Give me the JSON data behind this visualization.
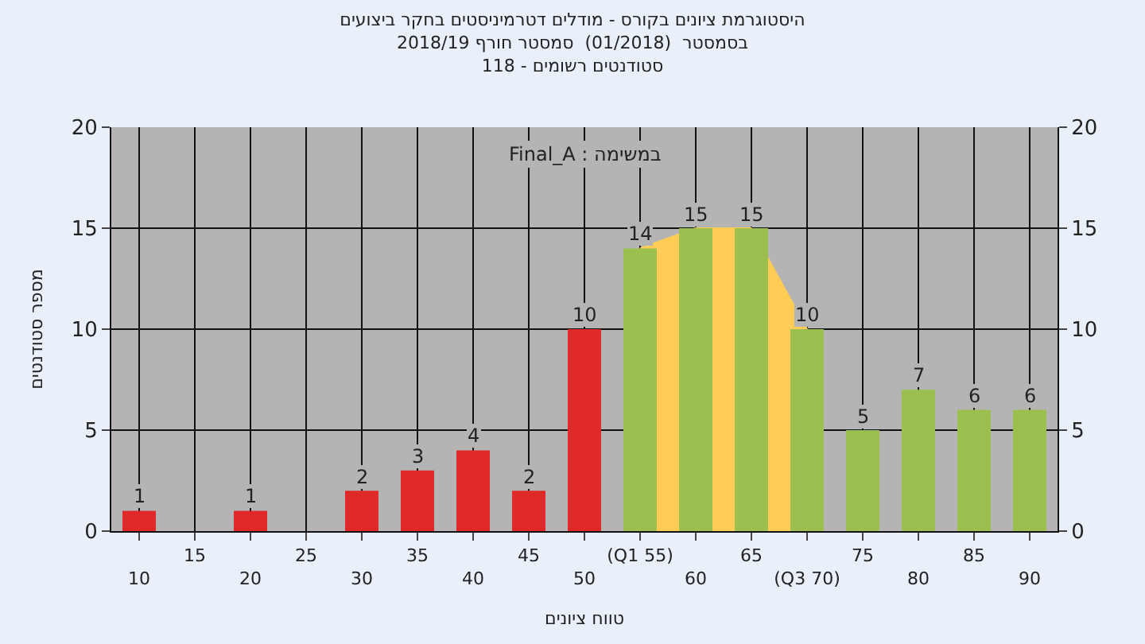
{
  "chart_data": {
    "type": "bar",
    "title": "היסטוגרמת ציונים בקורס - מודלים דטרמיניסטים בחקר ביצועים",
    "subtitle": "בסמסטר  (01/2018)  סמסטר חורף 2018/19\nסטודנטים רשומים - 118",
    "xlabel": "טווח ציונים",
    "ylabel": "מספר סטודנטים",
    "annotations": [
      "Final_A : במשימה"
    ],
    "categories": [
      "10",
      "15",
      "20",
      "25",
      "30",
      "35",
      "40",
      "45",
      "50",
      "(Q1 55)",
      "60",
      "65",
      "(Q3 70)",
      "75",
      "80",
      "85",
      "90"
    ],
    "series": [
      {
        "type": "area",
        "color": "#ffcc55",
        "values": [
          null,
          null,
          null,
          null,
          null,
          null,
          null,
          null,
          null,
          14,
          15,
          15,
          10,
          null,
          null,
          null,
          null
        ]
      },
      {
        "colors": [
          "#e02a2a",
          "#e02a2a",
          "#e02a2a",
          "#e02a2a",
          "#e02a2a",
          "#e02a2a",
          "#e02a2a",
          "#e02a2a",
          "#e02a2a",
          "#9bc050",
          "#9bc050",
          "#9bc050",
          "#9bc050",
          "#9bc050",
          "#9bc050",
          "#9bc050",
          "#9bc050"
        ],
        "values": [
          1,
          0,
          1,
          0,
          2,
          3,
          4,
          2,
          10,
          14,
          15,
          15,
          10,
          5,
          7,
          6,
          6
        ],
        "value_labels": [
          "1",
          null,
          "1",
          null,
          "2",
          "3",
          "4",
          "2",
          "10",
          "14",
          "15",
          "15",
          "10",
          "5",
          "7",
          "6",
          "6"
        ]
      }
    ],
    "ylim": [
      0,
      20
    ],
    "yticks": [
      0,
      5,
      10,
      15,
      20
    ],
    "y2lim": [
      0,
      20
    ],
    "y2ticks": [
      0,
      5,
      10,
      15,
      20
    ],
    "grid": true
  }
}
